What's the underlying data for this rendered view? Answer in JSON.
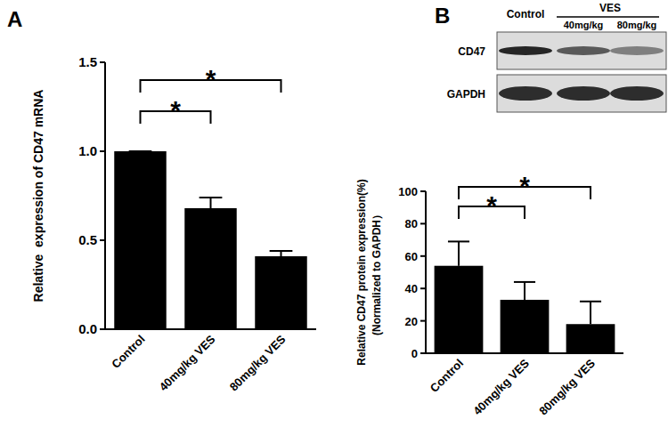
{
  "chart_data": [
    {
      "type": "bar",
      "panel_label": "A",
      "y_label": [
        "Relative  expression of CD47 mRNA"
      ],
      "categories": [
        "Control",
        "40mg/kg VES",
        "80mg/kg VES"
      ],
      "values": [
        1.0,
        0.68,
        0.41
      ],
      "errors": [
        0,
        0.06,
        0.03
      ],
      "color": "#000000",
      "ylim": [
        0,
        1.5
      ],
      "yticks": [
        {
          "value": 0,
          "label": "0.0"
        },
        {
          "value": 0.5,
          "label": "0.5"
        },
        {
          "value": 1,
          "label": "1.0"
        },
        {
          "value": 1.5,
          "label": "1.5"
        }
      ],
      "grid": false,
      "comparisons": [
        {
          "groups": [
            "Control",
            "40mg/kg VES"
          ],
          "label": "*"
        },
        {
          "groups": [
            "Control",
            "80mg/kg VES"
          ],
          "label": "*"
        }
      ]
    },
    {
      "type": "bar",
      "panel_label": "B",
      "y_label": [
        "Relative CD47 protein expression(%)",
        "(Normalized to GAPDH）"
      ],
      "categories": [
        "Control",
        "40mg/kg VES",
        "80mg/kg VES"
      ],
      "values": [
        54,
        33,
        18
      ],
      "errors": [
        15,
        11,
        14
      ],
      "color": "#000000",
      "ylim": [
        0,
        100
      ],
      "yticks": [
        0,
        20,
        40,
        60,
        80,
        100
      ],
      "grid": false,
      "comparisons": [
        {
          "groups": [
            "Control",
            "40mg/kg VES"
          ],
          "label": "*"
        },
        {
          "groups": [
            "Control",
            "80mg/kg VES"
          ],
          "label": "*"
        }
      ]
    }
  ],
  "blot": {
    "group_label": "VES",
    "lanes": [
      "Control",
      "40mg/kg",
      "80mg/kg"
    ],
    "rows": [
      "CD47",
      "GAPDH"
    ]
  }
}
